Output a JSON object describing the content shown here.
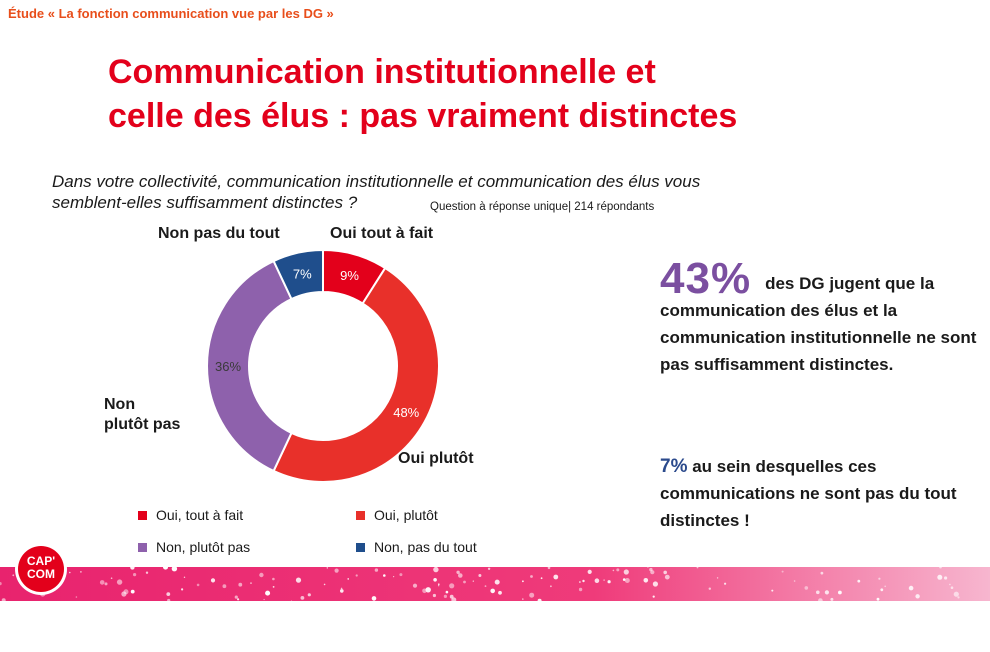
{
  "header": {
    "study": "Étude « La fonction communication vue par les DG »"
  },
  "title": {
    "line1": "Communication institutionnelle et",
    "line2": "celle des élus : pas vraiment distinctes"
  },
  "question": {
    "line1": "Dans votre collectivité, communication institutionnelle et communication des élus vous",
    "line2": "semblent-elles suffisamment distinctes ?",
    "meta": "Question à réponse unique| 214 répondants"
  },
  "chart_data": {
    "type": "pie",
    "variant": "donut",
    "categories": [
      "Oui, tout à fait",
      "Oui, plutôt",
      "Non, plutôt pas",
      "Non, pas du tout"
    ],
    "values": [
      9,
      48,
      36,
      7
    ],
    "value_labels": [
      "9%",
      "48%",
      "36%",
      "7%"
    ],
    "outer_labels": [
      "Oui tout à fait",
      "Oui plutôt",
      "Non\nplutôt pas",
      "Non pas du tout"
    ],
    "colors": [
      "#e3001b",
      "#e8302a",
      "#8e61ac",
      "#1f4e8c"
    ],
    "legend": "bottom"
  },
  "insights": {
    "pct1": "43%",
    "text1": "des DG jugent que la communication des élus et la communication institutionnelle ne sont pas suffisamment distinctes.",
    "pct2": "7%",
    "text2": "au sein desquelles ces communications ne sont pas du tout distinctes !"
  },
  "logo": {
    "top": "CAP'",
    "bottom": "COM"
  },
  "colors": {
    "accent_red": "#e3001b",
    "header_orange": "#e84e1b",
    "purple": "#7b4fa0",
    "navy": "#2b4a8c",
    "band_pink": "#e8236e"
  }
}
